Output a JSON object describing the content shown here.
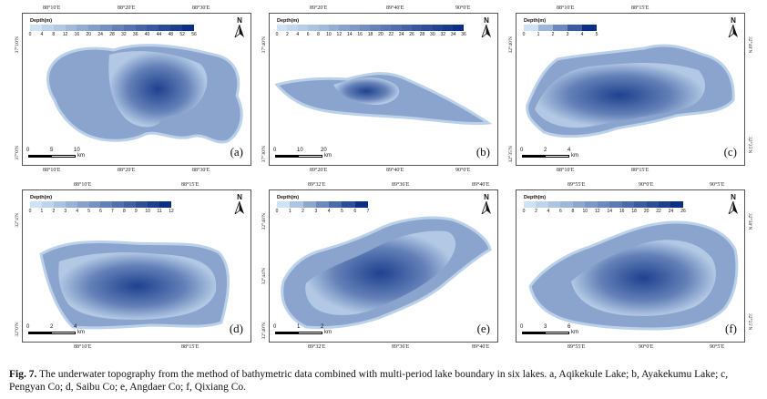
{
  "panels": [
    {
      "id": "a",
      "label": "(a)",
      "top_ticks": [
        "88°10′E",
        "88°20′E",
        "88°30′E"
      ],
      "bottom_ticks": [
        "88°10′E",
        "88°20′E",
        "88°30′E"
      ],
      "left_ticks": [
        "37°10′N",
        "37°0′N"
      ],
      "legend_title": "Depth(m)",
      "legend_values": [
        "0",
        "4",
        "8",
        "12",
        "16",
        "20",
        "24",
        "28",
        "32",
        "36",
        "40",
        "44",
        "48",
        "52",
        "56"
      ],
      "scale_labels": [
        "0",
        "5",
        "10"
      ],
      "scale_unit": "km",
      "north": "N",
      "lake_name": "Aqikekule Lake",
      "max_depth": 56
    },
    {
      "id": "b",
      "label": "(b)",
      "top_ticks": [
        "89°20′E",
        "89°40′E",
        "90°0′E"
      ],
      "bottom_ticks": [
        "89°20′E",
        "89°40′E",
        "90°0′E"
      ],
      "left_ticks": [
        "37°40′N",
        "37°30′N"
      ],
      "legend_title": "Depth(m)",
      "legend_values": [
        "0",
        "2",
        "4",
        "6",
        "8",
        "10",
        "12",
        "14",
        "16",
        "18",
        "20",
        "22",
        "24",
        "26",
        "28",
        "30",
        "32",
        "34",
        "36"
      ],
      "scale_labels": [
        "0",
        "10",
        "20"
      ],
      "scale_unit": "km",
      "north": "N",
      "lake_name": "Ayakekumu Lake",
      "max_depth": 36
    },
    {
      "id": "c",
      "label": "(c)",
      "top_ticks": [
        "88°10′E",
        "88°15′E"
      ],
      "bottom_ticks": [
        "88°10′E",
        "88°15′E"
      ],
      "left_ticks": [
        "32°40′N",
        "32°35′N"
      ],
      "right_ticks": [
        "32°40′N",
        "32°35′N"
      ],
      "legend_title": "Depth(m)",
      "legend_values": [
        "0",
        "1",
        "2",
        "3",
        "4",
        "5"
      ],
      "scale_labels": [
        "0",
        "2",
        "4"
      ],
      "scale_unit": "km",
      "north": "N",
      "lake_name": "Pengyan Co",
      "max_depth": 5
    },
    {
      "id": "d",
      "label": "(d)",
      "top_ticks": [
        "88°10′E",
        "88°15′E"
      ],
      "bottom_ticks": [
        "88°10′E",
        "88°15′E"
      ],
      "left_ticks": [
        "32°4′N",
        "32°0′N"
      ],
      "legend_title": "Depth(m)",
      "legend_values": [
        "0",
        "1",
        "2",
        "3",
        "4",
        "5",
        "6",
        "7",
        "8",
        "9",
        "10",
        "11",
        "12"
      ],
      "scale_labels": [
        "0",
        "2",
        "4"
      ],
      "scale_unit": "km",
      "north": "N",
      "lake_name": "Saibu Co",
      "max_depth": 12
    },
    {
      "id": "e",
      "label": "(e)",
      "top_ticks": [
        "89°32′E",
        "89°36′E",
        "89°40′E"
      ],
      "bottom_ticks": [
        "89°32′E",
        "89°36′E",
        "89°40′E"
      ],
      "left_ticks": [
        "32°48′N",
        "32°44′N",
        "32°40′N"
      ],
      "legend_title": "Depth(m)",
      "legend_values": [
        "0",
        "1",
        "2",
        "3",
        "4",
        "5",
        "6",
        "7"
      ],
      "scale_labels": [
        "0",
        "1",
        "2"
      ],
      "scale_unit": "km",
      "north": "N",
      "lake_name": "Angdaer Co",
      "max_depth": 7
    },
    {
      "id": "f",
      "label": "(f)",
      "top_ticks": [
        "89°55′E",
        "90°0′E",
        "90°5′E"
      ],
      "bottom_ticks": [
        "89°55′E",
        "90°0′E",
        "90°5′E"
      ],
      "right_ticks": [
        "32°30′N",
        "32°25′N"
      ],
      "legend_title": "Depth(m)",
      "legend_values": [
        "0",
        "2",
        "4",
        "6",
        "8",
        "10",
        "12",
        "14",
        "16",
        "18",
        "20",
        "22",
        "24",
        "26"
      ],
      "scale_labels": [
        "0",
        "3",
        "6"
      ],
      "scale_unit": "km",
      "north": "N",
      "lake_name": "Qixiang Co",
      "max_depth": 26
    }
  ],
  "caption": {
    "fig": "Fig. 7.",
    "text": "The underwater topography from the method of bathymetric data combined with multi-period lake boundary in six lakes. a, Aqikekule Lake; b, Ayakekumu Lake; c, Pengyan Co; d, Saibu Co; e, Angdaer Co; f, Qixiang Co."
  },
  "colors": {
    "shallow": "#cfe3f5",
    "deep": "#0b2f84",
    "frame": "#555555"
  }
}
